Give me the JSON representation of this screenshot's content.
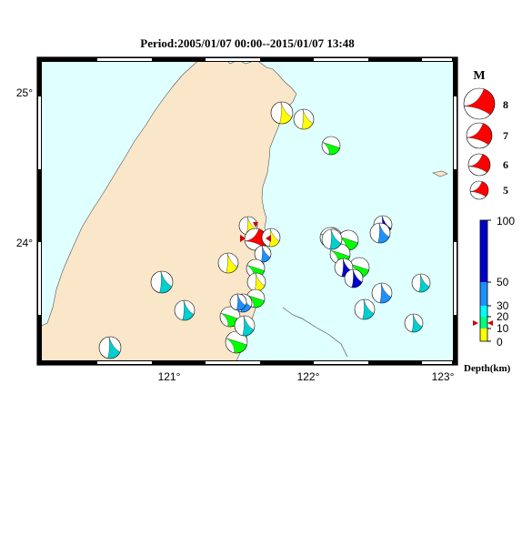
{
  "title": "Period:2005/01/07 00:00--2015/01/07 13:48",
  "map": {
    "ocean_color": "#e0ffff",
    "land_color": "#fae6c8",
    "lon_ticks": [
      "121°",
      "122°",
      "123°"
    ],
    "lat_ticks": [
      "25°",
      "24°"
    ]
  },
  "magnitude_legend": {
    "title": "M",
    "items": [
      "8",
      "7",
      "6",
      "5"
    ],
    "beachball_color": "#ff0000"
  },
  "depth_scale": {
    "title": "Depth(km)",
    "labels": [
      "100",
      "50",
      "30",
      "20",
      "10",
      "0"
    ],
    "colors": {
      "0-10": "#ffff00",
      "10-20": "#00ff7f",
      "20-30": "#00ffff",
      "30-50": "#1e90ff",
      "50-100": "#0000cd"
    }
  },
  "events": [
    {
      "color": "#ffff00",
      "type": "a"
    },
    {
      "color": "#ffff00",
      "type": "a"
    },
    {
      "color": "#00ff00",
      "type": "b"
    },
    {
      "color": "#ffff00",
      "type": "a"
    },
    {
      "color": "#ff0000",
      "type": "c"
    },
    {
      "color": "#ffff00",
      "type": "a"
    },
    {
      "color": "#1e90ff",
      "type": "a"
    },
    {
      "color": "#ffff00",
      "type": "a"
    },
    {
      "color": "#00ff00",
      "type": "b"
    },
    {
      "color": "#ffff00",
      "type": "a"
    },
    {
      "color": "#00ff00",
      "type": "b"
    },
    {
      "color": "#1e90ff",
      "type": "a"
    },
    {
      "color": "#00ff00",
      "type": "b"
    },
    {
      "color": "#00cfcf",
      "type": "a"
    },
    {
      "color": "#00cfcf",
      "type": "a"
    },
    {
      "color": "#00cfcf",
      "type": "a"
    },
    {
      "color": "#00ff00",
      "type": "b"
    },
    {
      "color": "#00cfcf",
      "type": "a"
    },
    {
      "color": "#00cfcf",
      "type": "a"
    },
    {
      "color": "#00cfcf",
      "type": "a"
    },
    {
      "color": "#00ff00",
      "type": "b"
    },
    {
      "color": "#00ff00",
      "type": "b"
    },
    {
      "color": "#00ff00",
      "type": "b"
    },
    {
      "color": "#0000cd",
      "type": "a"
    },
    {
      "color": "#00ff00",
      "type": "b"
    },
    {
      "color": "#0000cd",
      "type": "a"
    },
    {
      "color": "#00ff00",
      "type": "b"
    },
    {
      "color": "#0000cd",
      "type": "a"
    },
    {
      "color": "#1e90ff",
      "type": "a"
    },
    {
      "color": "#00cfcf",
      "type": "a"
    },
    {
      "color": "#1e90ff",
      "type": "a"
    },
    {
      "color": "#00cfcf",
      "type": "a"
    },
    {
      "color": "#1e90ff",
      "type": "a"
    }
  ]
}
